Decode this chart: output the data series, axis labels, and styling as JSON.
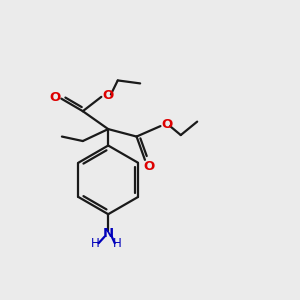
{
  "bg_color": "#ebebeb",
  "bond_color": "#1a1a1a",
  "oxygen_color": "#dd0000",
  "nitrogen_color": "#0000bb",
  "lw": 1.6,
  "xlim": [
    0,
    10
  ],
  "ylim": [
    0,
    10
  ]
}
